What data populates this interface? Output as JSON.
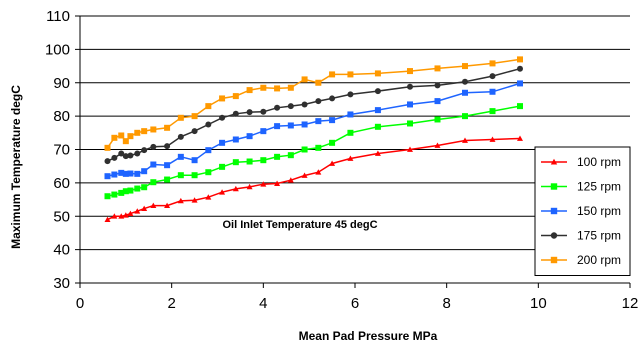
{
  "chart_data": {
    "type": "line",
    "title": "",
    "xlabel": "Mean Pad Pressure MPa",
    "ylabel": "Maximum Temperature degC",
    "xlim": [
      0,
      12
    ],
    "ylim": [
      30,
      110
    ],
    "xticks": [
      0,
      2,
      4,
      6,
      8,
      10,
      12
    ],
    "yticks": [
      30,
      40,
      50,
      60,
      70,
      80,
      90,
      100,
      110
    ],
    "xtick_labels": [
      "0",
      "2",
      "4",
      "6",
      "8",
      "10",
      "12"
    ],
    "ytick_labels": [
      "30",
      "40",
      "50",
      "60",
      "70",
      "80",
      "90",
      "100",
      "110"
    ],
    "grid": "horizontal",
    "legend_position": "right",
    "annotation": "Oil Inlet Temperature 45 degC",
    "annotation_at": [
      4.8,
      46.5
    ],
    "series": [
      {
        "name": "100 rpm",
        "color": "#ff0000",
        "marker": "triangle",
        "x": [
          0.6,
          0.75,
          0.9,
          1.0,
          1.1,
          1.25,
          1.4,
          1.6,
          1.9,
          2.2,
          2.5,
          2.8,
          3.1,
          3.4,
          3.7,
          4.0,
          4.3,
          4.6,
          4.9,
          5.2,
          5.5,
          5.9,
          6.5,
          7.2,
          7.8,
          8.4,
          9.0,
          9.6
        ],
        "y": [
          49,
          50,
          50,
          50.3,
          50.8,
          51.5,
          52.3,
          53.2,
          53.2,
          54.6,
          54.8,
          55.7,
          57.2,
          58.2,
          58.8,
          59.6,
          59.8,
          60.8,
          62.2,
          63.2,
          65.8,
          67.3,
          68.8,
          70,
          71.2,
          72.7,
          73,
          73.3
        ]
      },
      {
        "name": "125 rpm",
        "color": "#00ff00",
        "marker": "square",
        "x": [
          0.6,
          0.75,
          0.9,
          1.0,
          1.1,
          1.25,
          1.4,
          1.6,
          1.9,
          2.2,
          2.5,
          2.8,
          3.1,
          3.4,
          3.7,
          4.0,
          4.3,
          4.6,
          4.9,
          5.2,
          5.5,
          5.9,
          6.5,
          7.2,
          7.8,
          8.4,
          9.0,
          9.6
        ],
        "y": [
          56,
          56.5,
          57,
          57.5,
          57.7,
          58.3,
          58.7,
          60.2,
          61,
          62.3,
          62.3,
          63.2,
          64.8,
          66.2,
          66.4,
          66.8,
          67.8,
          68.3,
          70,
          70.5,
          72,
          75,
          76.8,
          77.8,
          79,
          80,
          81.5,
          83
        ]
      },
      {
        "name": "150 rpm",
        "color": "#1e64ff",
        "marker": "square",
        "x": [
          0.6,
          0.75,
          0.9,
          1.0,
          1.1,
          1.25,
          1.4,
          1.6,
          1.9,
          2.2,
          2.5,
          2.8,
          3.1,
          3.4,
          3.7,
          4.0,
          4.3,
          4.6,
          4.9,
          5.2,
          5.5,
          5.9,
          6.5,
          7.2,
          7.8,
          8.4,
          9.0,
          9.6
        ],
        "y": [
          62,
          62.5,
          63,
          62.7,
          62.8,
          62.7,
          63.5,
          65.5,
          65.3,
          67.8,
          66.8,
          69.8,
          72,
          73,
          74,
          75.5,
          77,
          77.2,
          77.5,
          78.5,
          78.8,
          80.5,
          81.8,
          83.5,
          84.5,
          87,
          87.3,
          89.8
        ]
      },
      {
        "name": "175 rpm",
        "color": "#303030",
        "marker": "circle",
        "x": [
          0.6,
          0.75,
          0.9,
          1.0,
          1.1,
          1.25,
          1.4,
          1.6,
          1.9,
          2.2,
          2.5,
          2.8,
          3.1,
          3.4,
          3.7,
          4.0,
          4.3,
          4.6,
          4.9,
          5.2,
          5.5,
          5.9,
          6.5,
          7.2,
          7.8,
          8.4,
          9.0,
          9.6
        ],
        "y": [
          66.5,
          67.5,
          68.8,
          68,
          68.2,
          68.8,
          69.8,
          70.8,
          71,
          73.8,
          75.5,
          77.5,
          79.5,
          80.7,
          81.2,
          81.3,
          82.5,
          83,
          83.5,
          84.5,
          85.3,
          86.5,
          87.5,
          88.8,
          89.2,
          90.3,
          92,
          94.2
        ]
      },
      {
        "name": "200 rpm",
        "color": "#ff9900",
        "marker": "square",
        "x": [
          0.6,
          0.75,
          0.9,
          1.0,
          1.1,
          1.25,
          1.4,
          1.6,
          1.9,
          2.2,
          2.5,
          2.8,
          3.1,
          3.4,
          3.7,
          4.0,
          4.3,
          4.6,
          4.9,
          5.2,
          5.5,
          5.9,
          6.5,
          7.2,
          7.8,
          8.4,
          9.0,
          9.6
        ],
        "y": [
          70.5,
          73.5,
          74.2,
          72.5,
          74,
          75,
          75.5,
          76,
          76.5,
          79.5,
          80,
          83,
          85.3,
          86,
          87.8,
          88.5,
          88.3,
          88.5,
          91,
          90,
          92.5,
          92.5,
          92.8,
          93.5,
          94.3,
          95,
          95.8,
          97
        ]
      }
    ]
  }
}
